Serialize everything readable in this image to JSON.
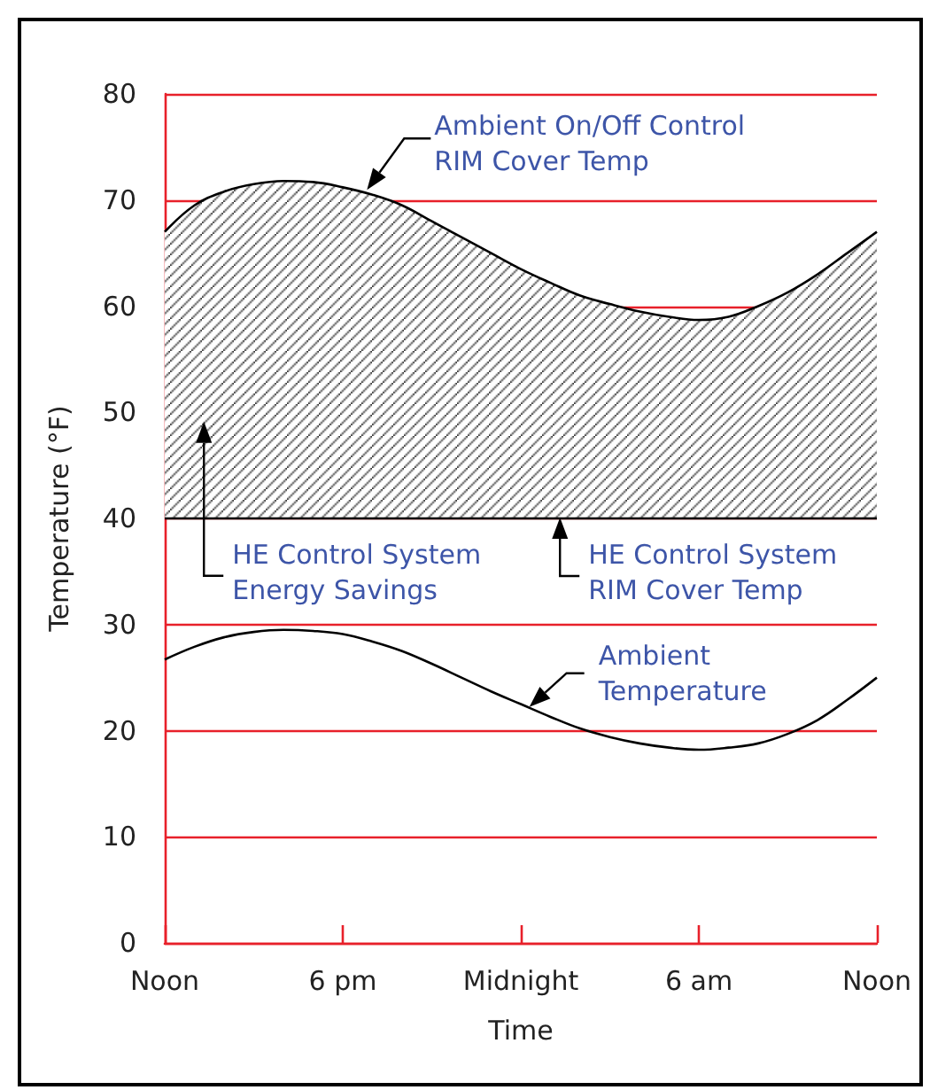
{
  "chart_data": {
    "type": "line",
    "xlabel": "Time",
    "ylabel": "Temperature (°F)",
    "categories": [
      "Noon",
      null,
      null,
      null,
      null,
      null,
      "6 pm",
      null,
      null,
      null,
      null,
      null,
      "Midnight",
      null,
      null,
      null,
      null,
      null,
      "6 am",
      null,
      null,
      null,
      null,
      null,
      "Noon"
    ],
    "ylim": [
      0,
      80
    ],
    "yticks": [
      0,
      10,
      20,
      30,
      40,
      50,
      60,
      70,
      80
    ],
    "grid": "y",
    "marker": "none",
    "line_style": "solid",
    "series": [
      {
        "type": "area",
        "color": "#000000",
        "values": [
          67,
          69.5,
          70.8,
          71.5,
          71.8,
          71.7,
          71.2,
          70.5,
          69.5,
          68,
          66.5,
          65,
          63.5,
          62.2,
          61,
          60.2,
          59.5,
          59,
          58.7,
          59,
          60,
          61.3,
          63,
          65,
          67
        ]
      },
      {
        "color": "#000000",
        "values": [
          26.7,
          27.9,
          28.8,
          29.3,
          29.5,
          29.4,
          29.1,
          28.4,
          27.5,
          26.3,
          25,
          23.7,
          22.5,
          21.3,
          20.2,
          19.4,
          18.8,
          18.4,
          18.2,
          18.4,
          18.8,
          19.7,
          21,
          22.9,
          25
        ]
      }
    ],
    "ref_lines": [
      {
        "axis": "y",
        "value": 40,
        "color": "#000000"
      }
    ],
    "annotations": [
      "Ambient On/Off Control\nRIM Cover Temp",
      "HE Control System\nEnergy Savings",
      "HE Control System\nRIM Cover Temp",
      "Ambient\nTemperature"
    ]
  }
}
